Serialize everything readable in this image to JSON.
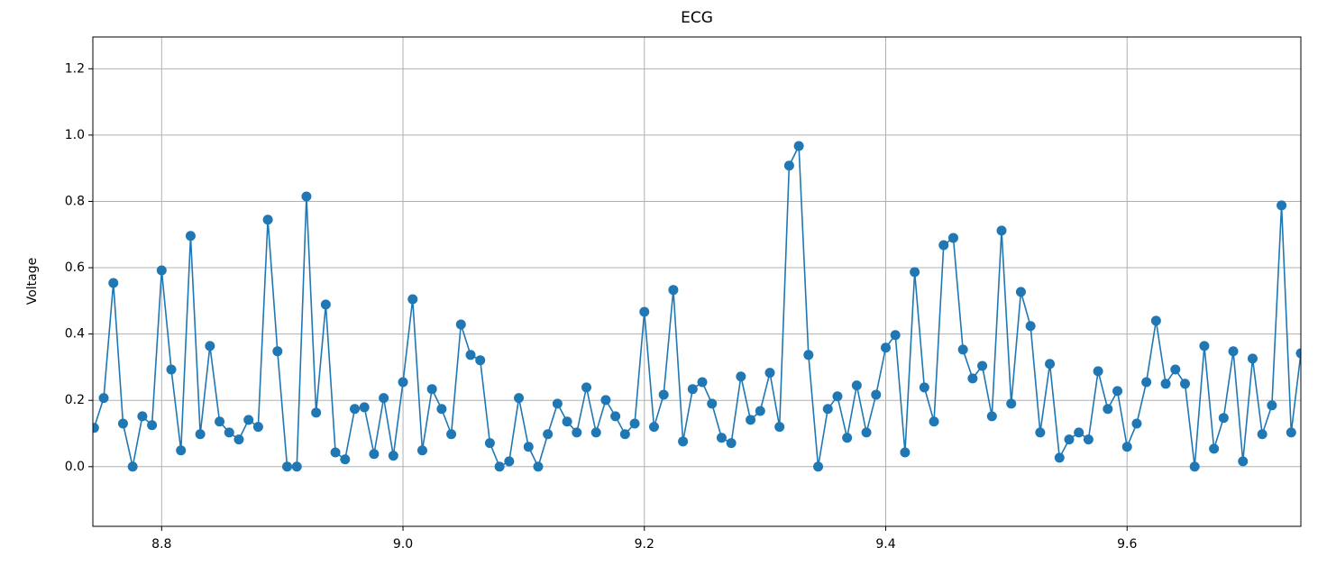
{
  "chart_data": {
    "type": "line",
    "title": "ECG",
    "ylabel": "Voltage",
    "grid": true,
    "markers": true,
    "xlim": [
      8.743,
      9.744
    ],
    "ylim": [
      -0.18,
      1.296
    ],
    "xticks": [
      8.8,
      {
        "value": 9,
        "label": "9.0"
      },
      9.2,
      9.4,
      9.6
    ],
    "yticks": [
      {
        "value": 0,
        "label": "0.0"
      },
      0.2,
      0.4,
      0.6,
      0.8,
      {
        "value": 1,
        "label": "1.0"
      },
      1.2
    ],
    "x": [
      8.744,
      8.752,
      8.76,
      8.768,
      8.776,
      8.784,
      8.792,
      8.8,
      8.808,
      8.816,
      8.824,
      8.832,
      8.84,
      8.848,
      8.856,
      8.864,
      8.872,
      8.88,
      8.888,
      8.896,
      8.904,
      8.912,
      8.92,
      8.928,
      8.936,
      8.944,
      8.952,
      8.96,
      8.968,
      8.976,
      8.984,
      8.992,
      9.0,
      9.008,
      9.016,
      9.024,
      9.032,
      9.04,
      9.048,
      9.056,
      9.064,
      9.072,
      9.08,
      9.088,
      9.096,
      9.104,
      9.112,
      9.12,
      9.128,
      9.136,
      9.144,
      9.152,
      9.16,
      9.168,
      9.176,
      9.184,
      9.192,
      9.2,
      9.208,
      9.216,
      9.224,
      9.232,
      9.24,
      9.248,
      9.256,
      9.264,
      9.272,
      9.28,
      9.288,
      9.296,
      9.304,
      9.312,
      9.32,
      9.328,
      9.336,
      9.344,
      9.352,
      9.36,
      9.368,
      9.376,
      9.384,
      9.392,
      9.4,
      9.408,
      9.416,
      9.424,
      9.432,
      9.44,
      9.448,
      9.456,
      9.464,
      9.472,
      9.48,
      9.488,
      9.496,
      9.504,
      9.512,
      9.52,
      9.528,
      9.536,
      9.544,
      9.552,
      9.56,
      9.568,
      9.576,
      9.584,
      9.592,
      9.6,
      9.608,
      9.616,
      9.624,
      9.632,
      9.64,
      9.648,
      9.656,
      9.664,
      9.672,
      9.68,
      9.688,
      9.696,
      9.704,
      9.712,
      9.72,
      9.728,
      9.736,
      9.744
    ],
    "series": [
      {
        "color": "#1f77b4",
        "values": [
          0.117,
          0.207,
          0.554,
          0.13,
          0.0,
          0.152,
          0.125,
          0.592,
          0.293,
          0.049,
          0.696,
          0.098,
          0.364,
          0.136,
          0.103,
          0.082,
          0.141,
          0.12,
          0.745,
          0.348,
          0.0,
          0.0,
          0.815,
          0.163,
          0.489,
          0.043,
          0.022,
          0.174,
          0.179,
          0.038,
          0.207,
          0.033,
          0.255,
          0.505,
          0.049,
          0.234,
          0.174,
          0.098,
          0.429,
          0.337,
          0.321,
          0.071,
          0.0,
          0.016,
          0.207,
          0.06,
          0.0,
          0.098,
          0.19,
          0.136,
          0.103,
          0.239,
          0.103,
          0.201,
          0.152,
          0.098,
          0.13,
          0.467,
          0.12,
          0.217,
          0.533,
          0.076,
          0.234,
          0.255,
          0.19,
          0.087,
          0.071,
          0.272,
          0.141,
          0.168,
          0.283,
          0.12,
          0.908,
          0.967,
          0.337,
          0.0,
          0.174,
          0.212,
          0.087,
          0.245,
          0.103,
          0.217,
          0.359,
          0.397,
          0.043,
          0.587,
          0.239,
          0.136,
          0.668,
          0.69,
          0.353,
          0.266,
          0.304,
          0.152,
          0.712,
          0.19,
          0.527,
          0.424,
          0.103,
          0.31,
          0.027,
          0.082,
          0.103,
          0.082,
          0.288,
          0.174,
          0.228,
          0.06,
          0.13,
          0.255,
          0.44,
          0.25,
          0.293,
          0.25,
          0.0,
          0.364,
          0.054,
          0.147,
          0.348,
          0.016,
          0.326,
          0.098,
          0.185,
          0.788,
          0.103,
          0.342
        ]
      }
    ]
  }
}
